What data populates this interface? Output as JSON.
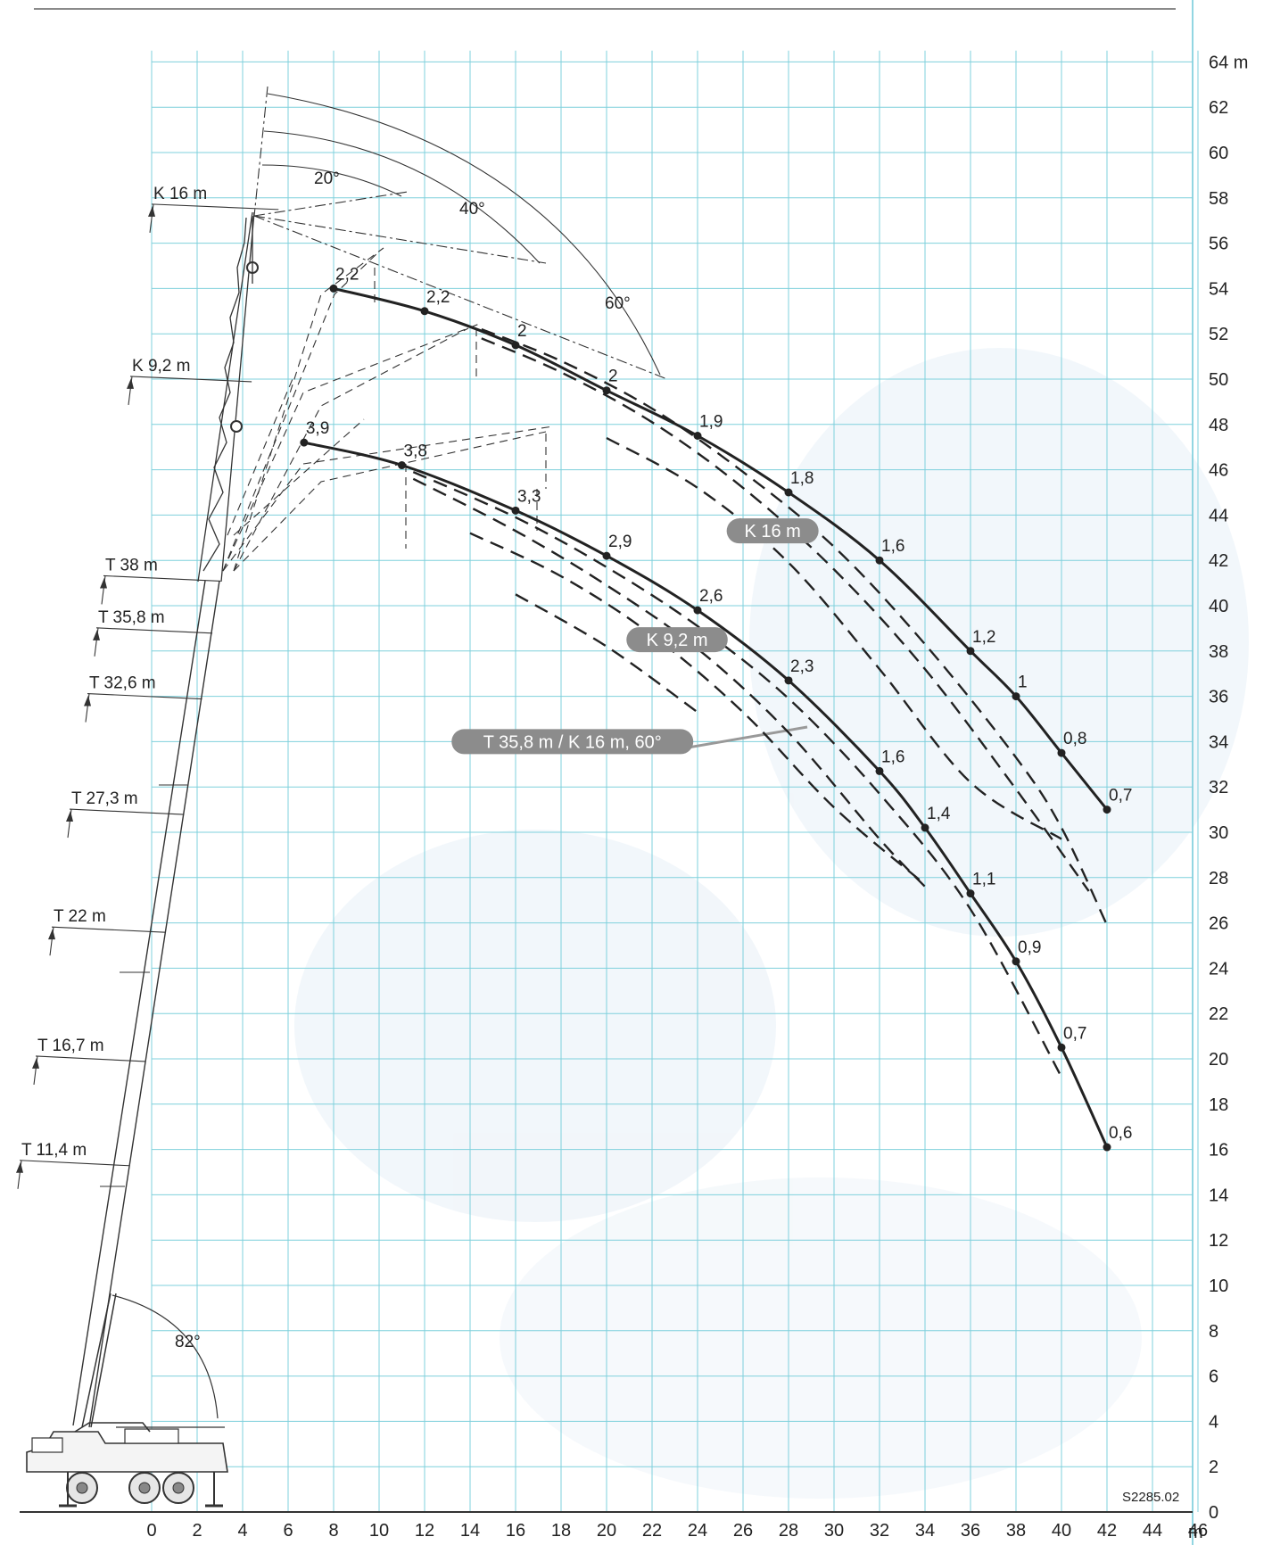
{
  "chart_data": {
    "type": "line",
    "x_axis": {
      "ticks": [
        0,
        2,
        4,
        6,
        8,
        10,
        12,
        14,
        16,
        18,
        20,
        22,
        24,
        26,
        28,
        30,
        32,
        34,
        36,
        38,
        40,
        42,
        44,
        46
      ],
      "unit": "m",
      "range": [
        0,
        46
      ]
    },
    "y_axis": {
      "ticks": [
        0,
        2,
        4,
        6,
        8,
        10,
        12,
        14,
        16,
        18,
        20,
        22,
        24,
        26,
        28,
        30,
        32,
        34,
        36,
        38,
        40,
        42,
        44,
        46,
        48,
        50,
        52,
        54,
        56,
        58,
        60,
        62,
        64
      ],
      "unit": "m",
      "range": [
        0,
        64
      ]
    },
    "grid": true,
    "series": [
      {
        "name": "K 16 m",
        "points": [
          {
            "x": 8,
            "y": 54,
            "label": "2,2"
          },
          {
            "x": 12,
            "y": 53,
            "label": "2,2"
          },
          {
            "x": 16,
            "y": 51.5,
            "label": "2"
          },
          {
            "x": 20,
            "y": 49.5,
            "label": "2"
          },
          {
            "x": 24,
            "y": 47.5,
            "label": "1,9"
          },
          {
            "x": 28,
            "y": 45,
            "label": "1,8"
          },
          {
            "x": 32,
            "y": 42,
            "label": "1,6"
          },
          {
            "x": 36,
            "y": 38,
            "label": "1,2"
          },
          {
            "x": 38,
            "y": 36,
            "label": "1"
          },
          {
            "x": 40,
            "y": 33.5,
            "label": "0,8"
          },
          {
            "x": 42,
            "y": 31,
            "label": "0,7"
          }
        ]
      },
      {
        "name": "K 9,2 m",
        "points": [
          {
            "x": 6.7,
            "y": 47.2,
            "label": "3,9"
          },
          {
            "x": 11,
            "y": 46.2,
            "label": "3,8"
          },
          {
            "x": 16,
            "y": 44.2,
            "label": "3,3"
          },
          {
            "x": 20,
            "y": 42.2,
            "label": "2,9"
          },
          {
            "x": 24,
            "y": 39.8,
            "label": "2,6"
          },
          {
            "x": 28,
            "y": 36.7,
            "label": "2,3"
          },
          {
            "x": 32,
            "y": 32.7,
            "label": "1,6"
          },
          {
            "x": 34,
            "y": 30.2,
            "label": "1,4"
          },
          {
            "x": 36,
            "y": 27.3,
            "label": "1,1"
          },
          {
            "x": 38,
            "y": 24.3,
            "label": "0,9"
          },
          {
            "x": 40,
            "y": 20.5,
            "label": "0,7"
          },
          {
            "x": 42,
            "y": 16.1,
            "label": "0,6"
          }
        ]
      }
    ],
    "dashed_curves": [
      {
        "points": [
          [
            14.5,
            52.2
          ],
          [
            18,
            50.8
          ],
          [
            22,
            48.7
          ],
          [
            26,
            45.9
          ],
          [
            30,
            42.6
          ],
          [
            34,
            38.3
          ],
          [
            38,
            33.3
          ],
          [
            40,
            30.2
          ],
          [
            42,
            25.9
          ]
        ]
      },
      {
        "points": [
          [
            14.5,
            51.8
          ],
          [
            18,
            50.3
          ],
          [
            22,
            48.1
          ],
          [
            26,
            45.2
          ],
          [
            30,
            41.6
          ],
          [
            34,
            37.2
          ],
          [
            38,
            31.9
          ],
          [
            41.2,
            27.4
          ]
        ]
      },
      {
        "points": [
          [
            20,
            47.4
          ],
          [
            24,
            45.2
          ],
          [
            28,
            41.9
          ],
          [
            32,
            37.2
          ],
          [
            36,
            32.2
          ],
          [
            40,
            29.7
          ]
        ]
      },
      {
        "points": [
          [
            11.5,
            45.9
          ],
          [
            16,
            43.9
          ],
          [
            20,
            41.7
          ],
          [
            24,
            39.1
          ],
          [
            28,
            35.9
          ],
          [
            32,
            31.7
          ],
          [
            36,
            26.6
          ],
          [
            40,
            19.2
          ]
        ]
      },
      {
        "points": [
          [
            11.5,
            45.6
          ],
          [
            16,
            43.3
          ],
          [
            20,
            40.9
          ],
          [
            24,
            38.1
          ],
          [
            28,
            34.4
          ],
          [
            32,
            29.7
          ],
          [
            34,
            27.6
          ]
        ]
      },
      {
        "points": [
          [
            14,
            43.2
          ],
          [
            18,
            41.3
          ],
          [
            22,
            38.7
          ],
          [
            26,
            35.3
          ],
          [
            30,
            31.1
          ],
          [
            34,
            27.7
          ]
        ]
      },
      {
        "points": [
          [
            16,
            40.5
          ],
          [
            20,
            38.2
          ],
          [
            24,
            35.3
          ]
        ]
      }
    ],
    "pills": [
      {
        "text": "K 16 m",
        "x": 27.3,
        "y": 43.3
      },
      {
        "text": "K 9,2 m",
        "x": 23.1,
        "y": 38.5
      },
      {
        "text": "T 35,8 m / K 16 m, 60°",
        "x": 18.5,
        "y": 34.0
      }
    ],
    "section_labels": [
      {
        "text": "K 16 m",
        "y": 57.8
      },
      {
        "text": "K 9,2 m",
        "y": 50.2
      },
      {
        "text": "T 38 m",
        "y": 41.4
      },
      {
        "text": "T 35,8 m",
        "y": 39.1
      },
      {
        "text": "T 32,6 m",
        "y": 36.2
      },
      {
        "text": "T 27,3 m",
        "y": 31.1
      },
      {
        "text": "T 22 m",
        "y": 25.9
      },
      {
        "text": "T 16,7 m",
        "y": 20.2
      },
      {
        "text": "T 11,4 m",
        "y": 15.6
      }
    ],
    "angles": [
      "20°",
      "40°",
      "60°",
      "82°"
    ],
    "drawing_code": "S2285.02"
  }
}
